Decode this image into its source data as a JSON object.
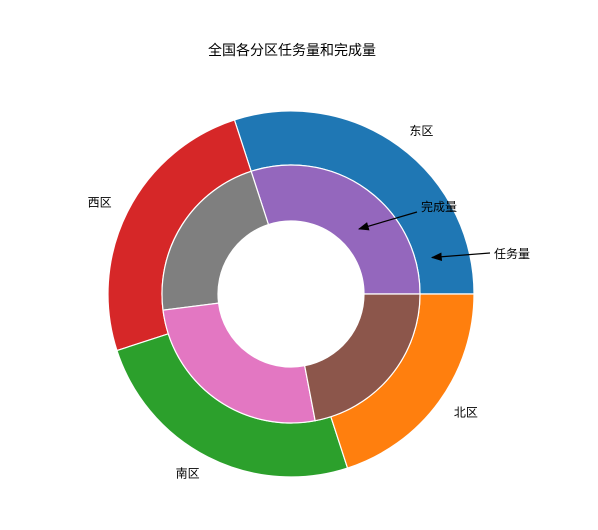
{
  "chart_data": {
    "type": "pie",
    "title": "全国各分区任务量和完成量",
    "outer_ring": {
      "categories": [
        "东区",
        "西区",
        "南区",
        "北区"
      ],
      "values": [
        30,
        25,
        25,
        20
      ],
      "colors": [
        "#1f77b4",
        "#d62728",
        "#2ca02c",
        "#ff7f0e"
      ]
    },
    "inner_ring": {
      "values": [
        30,
        22,
        26,
        22
      ],
      "colors": [
        "#9467bd",
        "#7f7f7f",
        "#e377c2",
        "#8c564b"
      ]
    },
    "annotations": [
      {
        "text": "任务量",
        "points_to": "outer_ring"
      },
      {
        "text": "完成量",
        "points_to": "inner_ring"
      }
    ]
  }
}
